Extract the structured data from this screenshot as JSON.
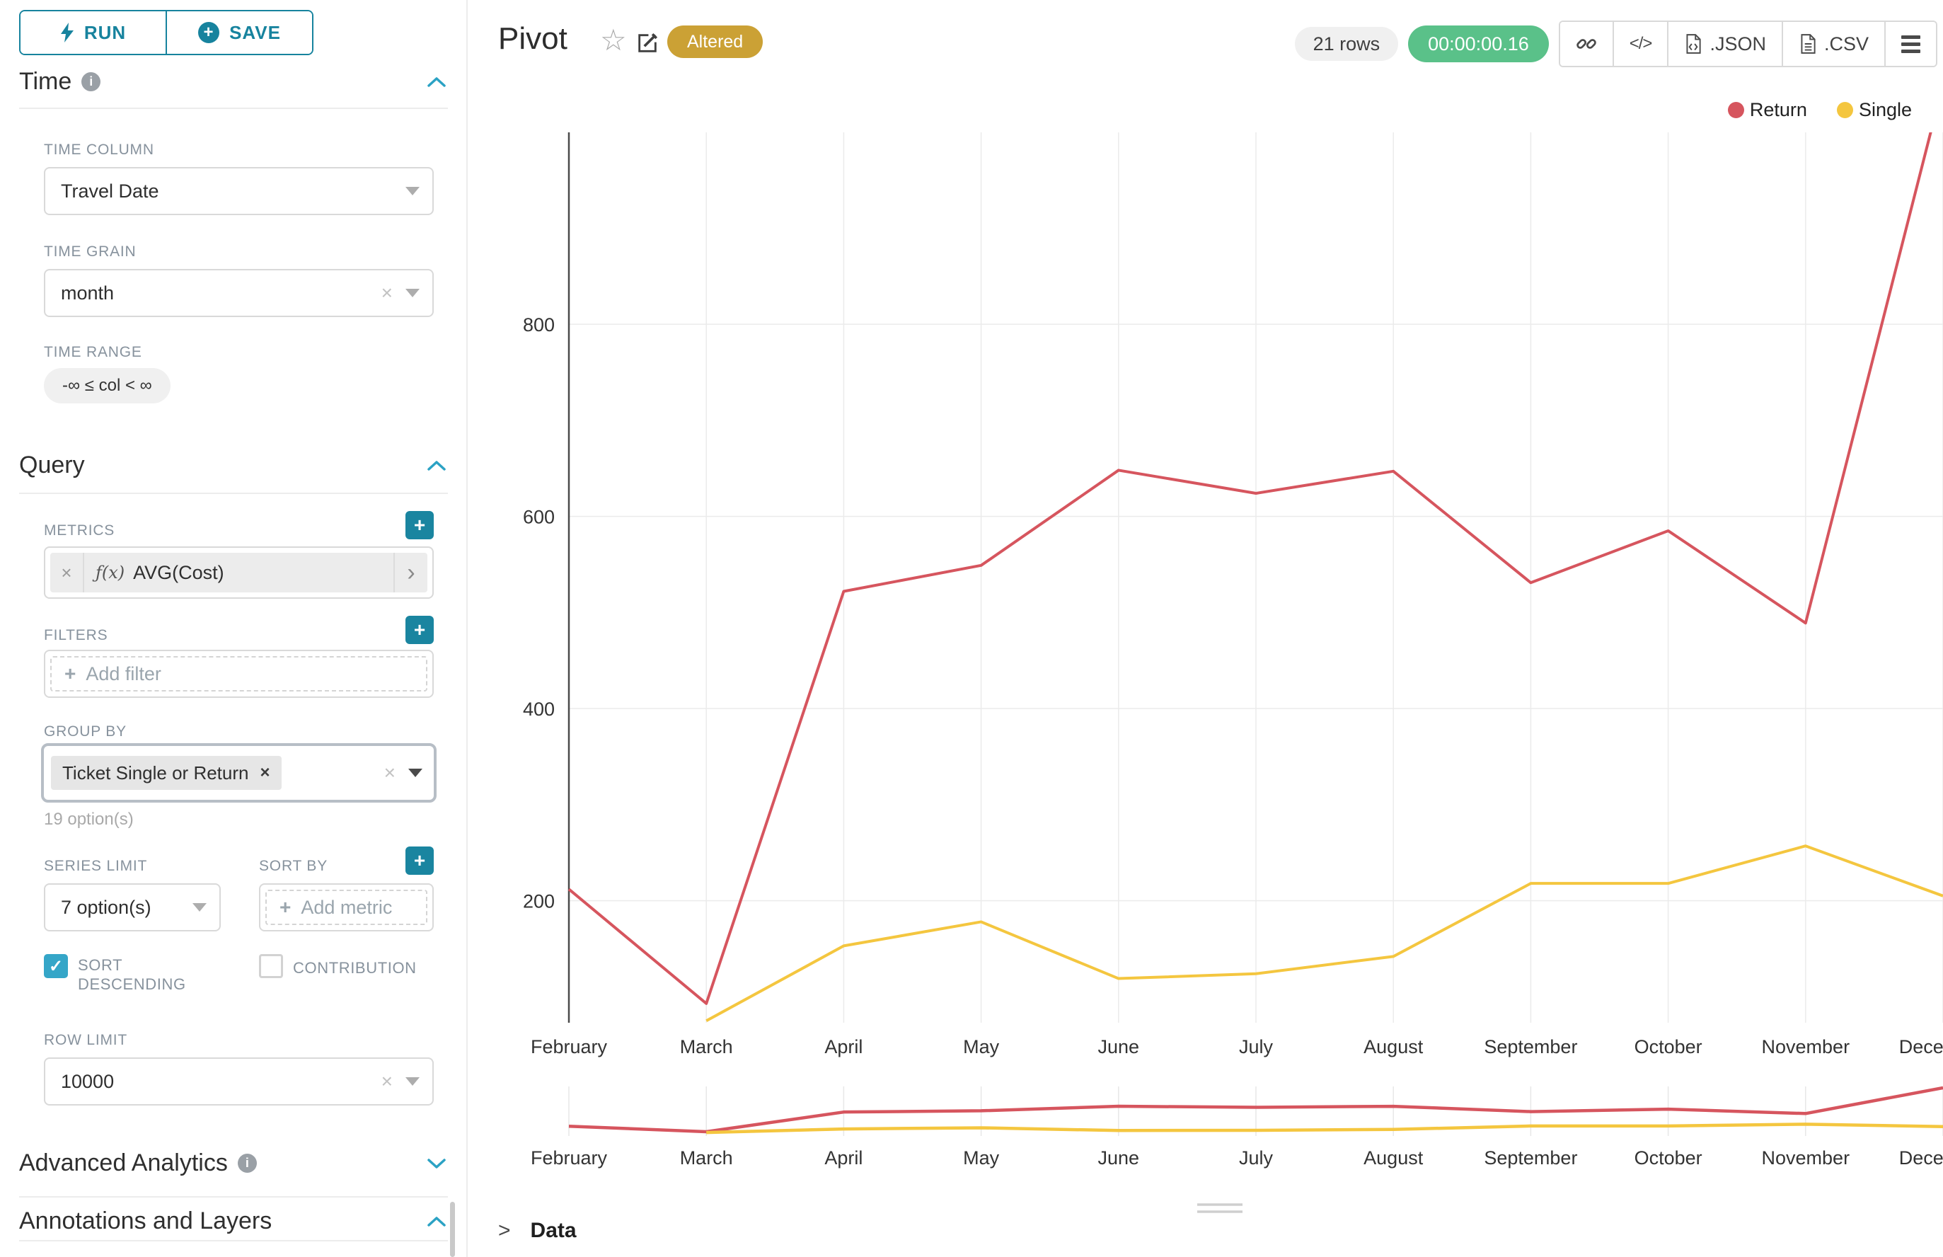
{
  "header": {
    "title": "Pivot",
    "badge": "Altered",
    "rows_count": "21 rows",
    "timer": "00:00:00.16",
    "export_json_label": ".JSON",
    "export_csv_label": ".CSV"
  },
  "sidebar": {
    "run_label": "RUN",
    "save_label": "SAVE",
    "time_section": "Time",
    "time_column_label": "TIME COLUMN",
    "time_column_value": "Travel Date",
    "time_grain_label": "TIME GRAIN",
    "time_grain_value": "month",
    "time_range_label": "TIME RANGE",
    "time_range_value": "-∞ ≤ col < ∞",
    "query_section": "Query",
    "metrics_label": "METRICS",
    "metric_fx": "ƒ(x)",
    "metric_value": "AVG(Cost)",
    "filters_label": "FILTERS",
    "filters_placeholder": "Add filter",
    "group_by_label": "GROUP BY",
    "group_by_chip": "Ticket Single or Return",
    "group_by_hint": "19 option(s)",
    "series_limit_label": "SERIES LIMIT",
    "series_limit_value": "7 option(s)",
    "sort_by_label": "SORT BY",
    "sort_by_placeholder": "Add metric",
    "sort_descending_label": "SORT DESCENDING",
    "sort_descending_checked": true,
    "contribution_label": "CONTRIBUTION",
    "contribution_checked": false,
    "row_limit_label": "ROW LIMIT",
    "row_limit_value": "10000",
    "advanced_section": "Advanced Analytics",
    "annotations_section": "Annotations and Layers"
  },
  "data_panel_label": "Data",
  "icons": {
    "star": "☆",
    "clear": "×",
    "chip_remove": "×",
    "metric_expand": "›",
    "plus": "+",
    "check": "✓",
    "code": "</>",
    "chevron_right": ">",
    "info": "i"
  },
  "colors": {
    "primary": "#1a85a0",
    "accent": "#20a7c9",
    "success": "#5ac189",
    "warning_badge": "#cba135",
    "return_series": "#d6555e",
    "single_series": "#f4c63f"
  },
  "chart_data": {
    "type": "line",
    "title": "Pivot",
    "xlabel": "",
    "ylabel": "",
    "categories": [
      "February",
      "March",
      "April",
      "May",
      "June",
      "July",
      "August",
      "September",
      "October",
      "November",
      "December"
    ],
    "series": [
      {
        "name": "Return",
        "color": "#d6555e",
        "values": [
          212,
          93,
          522,
          549,
          648,
          624,
          647,
          531,
          585,
          489,
          1050
        ]
      },
      {
        "name": "Single",
        "color": "#f4c63f",
        "values": [
          null,
          75,
          153,
          178,
          119,
          124,
          142,
          218,
          218,
          257,
          205
        ]
      }
    ],
    "yticks": [
      200,
      400,
      600,
      800
    ],
    "ylim": [
      73,
      1000
    ],
    "grid": true,
    "legend_position": "top-right",
    "has_preview_brush": true
  }
}
